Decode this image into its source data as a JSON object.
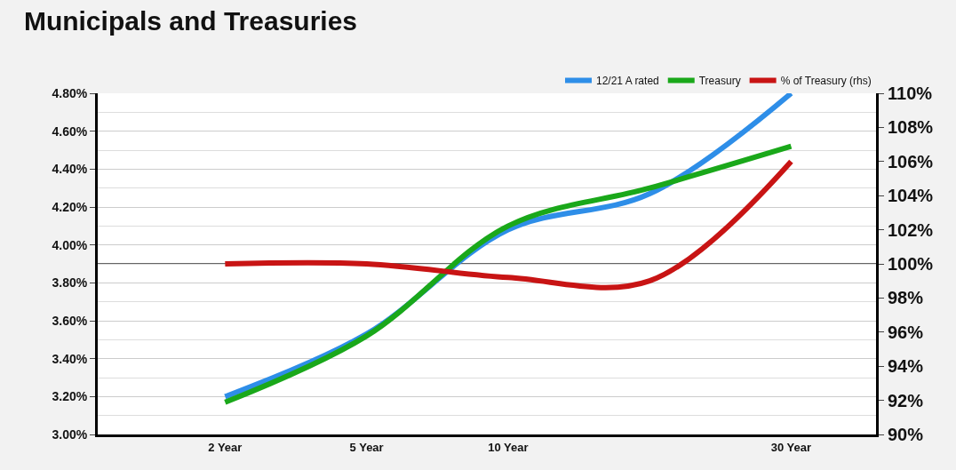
{
  "chart_data": {
    "type": "line",
    "title": "Municipals and Treasuries",
    "categories": [
      "2 Year",
      "5 Year",
      "10 Year",
      null,
      "30 Year"
    ],
    "series": [
      {
        "name": "12/21 A rated",
        "color": "#2e8ee8",
        "values": [
          3.2,
          3.53,
          4.08,
          4.27,
          4.8
        ]
      },
      {
        "name": "Treasury",
        "color": "#1aa81a",
        "values": [
          3.17,
          3.52,
          4.1,
          4.3,
          4.52
        ]
      },
      {
        "name": "% of Treasury (rhs)",
        "color": "#c81414",
        "axis": "y2",
        "values": [
          100,
          100,
          99.2,
          99.0,
          106
        ]
      }
    ],
    "ylim": [
      3.0,
      4.8
    ],
    "yticks": [
      {
        "value": 3.0,
        "label": "3.00%"
      },
      {
        "value": 3.2,
        "label": "3.20%"
      },
      {
        "value": 3.4,
        "label": "3.40%"
      },
      {
        "value": 3.6,
        "label": "3.60%"
      },
      {
        "value": 3.8,
        "label": "3.80%"
      },
      {
        "value": 4.0,
        "label": "4.00%"
      },
      {
        "value": 4.2,
        "label": "4.20%"
      },
      {
        "value": 4.4,
        "label": "4.40%"
      },
      {
        "value": 4.6,
        "label": "4.60%"
      },
      {
        "value": 4.8,
        "label": "4.80%"
      }
    ],
    "y2lim": [
      90,
      110
    ],
    "y2ticks": [
      {
        "value": 90,
        "label": "90%"
      },
      {
        "value": 92,
        "label": "92%"
      },
      {
        "value": 94,
        "label": "94%"
      },
      {
        "value": 96,
        "label": "96%"
      },
      {
        "value": 98,
        "label": "98%"
      },
      {
        "value": 100,
        "label": "100%"
      },
      {
        "value": 102,
        "label": "102%"
      },
      {
        "value": 104,
        "label": "104%"
      },
      {
        "value": 106,
        "label": "106%"
      },
      {
        "value": 108,
        "label": "108%"
      },
      {
        "value": 110,
        "label": "110%"
      }
    ],
    "ref_lines": [
      {
        "axis": "y2",
        "value": 100,
        "color": "#666666"
      }
    ],
    "grid": "y",
    "legend": "top right",
    "marker": "none",
    "line_style": "solid"
  }
}
